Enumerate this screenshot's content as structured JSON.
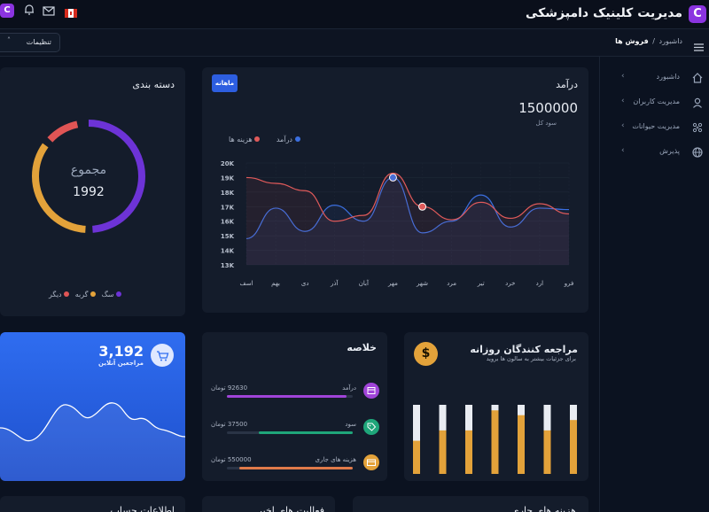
{
  "header": {
    "title": "مدیریت کلینیک دامپزشکی",
    "logo_letter": "C",
    "notification_count": "1"
  },
  "breadcrumb": {
    "root": "داشبورد",
    "separator": "/",
    "current": "فروش ها",
    "settings_label": "تنظیمات"
  },
  "sidebar": {
    "items": [
      {
        "label": "داشبورد",
        "icon": "home-icon"
      },
      {
        "label": "مدیریت کاربران",
        "icon": "user-icon"
      },
      {
        "label": "مدیریت حیوانات",
        "icon": "paw-icon"
      },
      {
        "label": "پذیرش",
        "icon": "globe-icon"
      }
    ]
  },
  "category_card": {
    "title": "دسته بندی",
    "total_label": "مجموع",
    "total_value": "1992",
    "legend": [
      {
        "label": "سگ",
        "color": "#6d33d6"
      },
      {
        "label": "گربه",
        "color": "#e3a23a"
      },
      {
        "label": "دیگر",
        "color": "#e05555"
      }
    ]
  },
  "revenue_card": {
    "title": "درآمد",
    "badge": "ماهانه",
    "amount": "1500000",
    "subtitle": "سود کل",
    "legend": [
      {
        "label": "درآمد",
        "color": "#3b6fe0"
      },
      {
        "label": "هزینه ها",
        "color": "#e05a5a"
      }
    ]
  },
  "chart_data": {
    "type": "line",
    "categories": [
      "فرو",
      "ارد",
      "خرد",
      "تیر",
      "مرد",
      "شهر",
      "مهر",
      "آبان",
      "آذر",
      "دی",
      "بهم",
      "اسف"
    ],
    "series": [
      {
        "name": "درآمد",
        "color": "#3b6fe0",
        "values": [
          16.8,
          16.9,
          15.6,
          17.8,
          16.0,
          15.2,
          19.0,
          16.0,
          17.1,
          15.3,
          16.9,
          14.8
        ]
      },
      {
        "name": "هزینه ها",
        "color": "#e05a5a",
        "values": [
          16.5,
          17.2,
          16.2,
          17.3,
          16.1,
          17.0,
          19.3,
          16.4,
          16.0,
          18.1,
          18.6,
          19.0
        ]
      }
    ],
    "y_ticks": [
      "20K",
      "19K",
      "18K",
      "17K",
      "16K",
      "15K",
      "14K",
      "13K"
    ],
    "ylim": [
      13,
      20
    ],
    "grid": true,
    "legend_position": "top-right"
  },
  "visitors_card": {
    "count": "3,192",
    "label": "مراجعین آنلاین",
    "icon": "cart-icon"
  },
  "summary_card": {
    "title": "خلاصه",
    "items": [
      {
        "label": "درآمد",
        "amount": "92630 تومان",
        "color": "#a044d8",
        "progress": 0.95,
        "icon": "calendar-icon"
      },
      {
        "label": "سود",
        "amount": "37500 تومان",
        "color": "#1fa67a",
        "progress": 0.75,
        "icon": "tag-icon"
      },
      {
        "label": "هزینه های جاری",
        "amount": "550000 تومان",
        "color": "#e3a23a",
        "progress": 0.9,
        "icon": "card-icon"
      }
    ]
  },
  "daily_card": {
    "title": "مراجعه کنندگان روزانه",
    "subtitle": "برای جزئیات بیشتر به سالون ها بروید",
    "icon": "dollar-icon",
    "bar_fill": [
      0.48,
      0.63,
      0.63,
      0.92,
      0.85,
      0.63,
      0.78
    ]
  },
  "bottom_cards": {
    "account_info": "اطلاعات حساب",
    "recent_activity": "فعالیت های اخیر",
    "current_costs": "هزینه های جاری"
  }
}
